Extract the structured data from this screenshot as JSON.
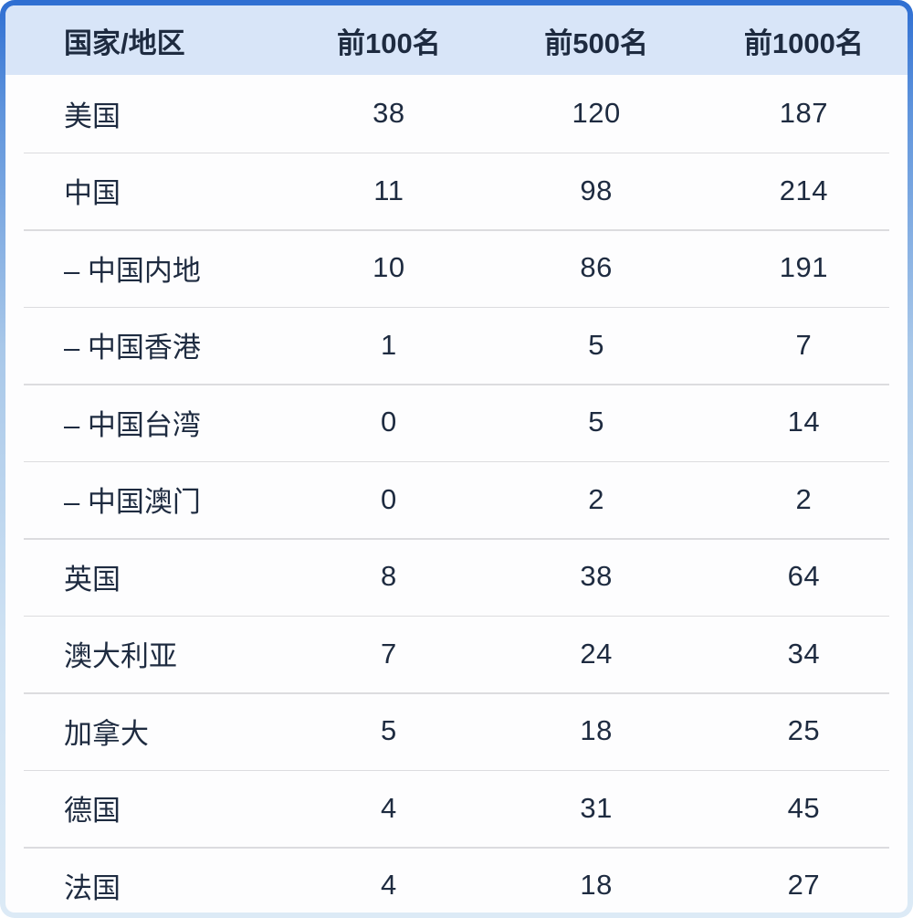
{
  "chart_data": {
    "type": "table",
    "columns": [
      "国家/地区",
      "前100名",
      "前500名",
      "前1000名"
    ],
    "rows": [
      {
        "label": "美国",
        "values": [
          38,
          120,
          187
        ]
      },
      {
        "label": "中国",
        "values": [
          11,
          98,
          214
        ]
      },
      {
        "label": "– 中国内地",
        "values": [
          10,
          86,
          191
        ]
      },
      {
        "label": "– 中国香港",
        "values": [
          1,
          5,
          7
        ]
      },
      {
        "label": "– 中国台湾",
        "values": [
          0,
          5,
          14
        ]
      },
      {
        "label": "– 中国澳门",
        "values": [
          0,
          2,
          2
        ]
      },
      {
        "label": "英国",
        "values": [
          8,
          38,
          64
        ]
      },
      {
        "label": "澳大利亚",
        "values": [
          7,
          24,
          34
        ]
      },
      {
        "label": "加拿大",
        "values": [
          5,
          18,
          25
        ]
      },
      {
        "label": "德国",
        "values": [
          4,
          31,
          45
        ]
      },
      {
        "label": "法国",
        "values": [
          4,
          18,
          27
        ]
      }
    ],
    "title": "",
    "legend": "none",
    "grid": "horizontal-separators"
  },
  "colors": {
    "header_bg": "#d8e5f8",
    "body_bg": "#fdfdfe",
    "text": "#1e2b40",
    "separator": "#dcdcdf",
    "border_top": "#2e6ed2",
    "border_upper": "#5f94dc",
    "border_mid": "#a9c8e9",
    "border_lower": "#cfe2f3",
    "border_bottom": "#dceaf6"
  }
}
